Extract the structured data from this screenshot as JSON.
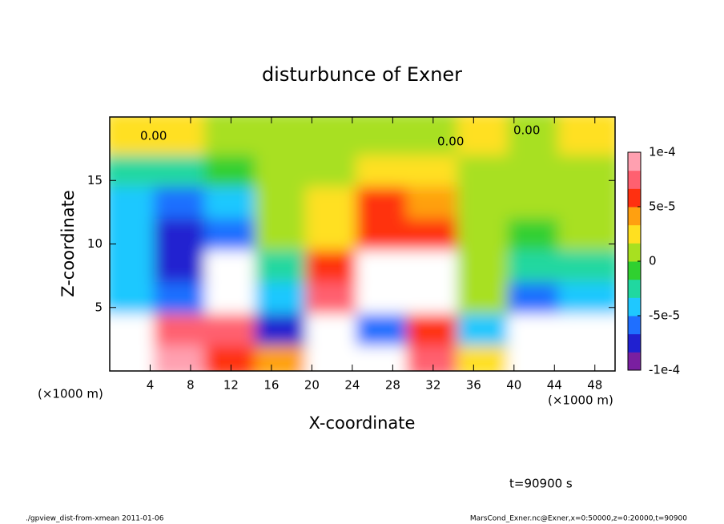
{
  "chart_data": {
    "type": "contourf",
    "title": "disturbunce of Exner",
    "x_label": "X-coordinate",
    "y_label": "Z-coordinate",
    "x_unit_label": "(×1000 m)",
    "x_unit_label_right": "(×1000 m)",
    "time_label": "t=90900 s",
    "footer_left": "./gpview_dist-from-xmean  2011-01-06",
    "footer_right": "MarsCond_Exner.nc@Exner,x=0:50000,z=0:20000,t=90900",
    "contour_labels": [
      "0.00",
      "0.00",
      "0.00"
    ],
    "xlim": [
      0,
      50
    ],
    "xticks": [
      4,
      8,
      12,
      16,
      20,
      24,
      28,
      32,
      36,
      40,
      44,
      48
    ],
    "ylim": [
      0,
      20
    ],
    "yticks": [
      5,
      10,
      15
    ],
    "clim": [
      -0.0001,
      0.0001
    ],
    "cticks": [
      {
        "value": 0.0001,
        "label": "1e-4"
      },
      {
        "value": 5e-05,
        "label": "5e-5"
      },
      0,
      {
        "value": -5e-05,
        "label": "-5e-5"
      },
      {
        "value": -0.0001,
        "label": "-1e-4"
      }
    ],
    "colormap": [
      "#7a1fa0",
      "#2020d0",
      "#1f6fff",
      "#1fc8ff",
      "#20d8a0",
      "#30d030",
      "#a8e020",
      "#ffe020",
      "#ffa010",
      "#ff3010",
      "#ff6070",
      "#ffa0b0"
    ],
    "x": [
      2.5,
      7.5,
      12.5,
      17.5,
      22.5,
      27.5,
      32.5,
      37.5,
      42.5,
      47.5
    ],
    "y": [
      1.25,
      3.75,
      6.25,
      8.75,
      11.25,
      13.75,
      16.25,
      18.75
    ],
    "z": [
      [
        0.00015,
        0.0001,
        6e-05,
        4e-05,
        0.00015,
        -0.00015,
        8e-05,
        3e-05,
        0.00015,
        0.00015
      ],
      [
        0.00015,
        8e-05,
        7e-05,
        -8e-05,
        0.00015,
        -6e-05,
        6e-05,
        -5e-05,
        0.00015,
        0.00015
      ],
      [
        -4e-05,
        -6e-05,
        -0.00015,
        -5e-05,
        8e-05,
        0.00015,
        0.00015,
        0,
        -6e-05,
        -4e-05
      ],
      [
        -5e-05,
        -8e-05,
        -0.00015,
        -2e-05,
        6e-05,
        0.00015,
        0.00015,
        0,
        -3e-05,
        -2e-05
      ],
      [
        -5e-05,
        -7e-05,
        -6e-05,
        0,
        3e-05,
        6e-05,
        6e-05,
        1e-05,
        -1e-05,
        0
      ],
      [
        -5e-05,
        -6e-05,
        -4e-05,
        1e-05,
        3e-05,
        5e-05,
        4e-05,
        1e-05,
        0,
        0
      ],
      [
        -3e-05,
        -2e-05,
        -1e-05,
        0,
        1e-05,
        3e-05,
        2e-05,
        0,
        1e-05,
        0
      ],
      [
        2e-05,
        3e-05,
        0,
        1e-05,
        1e-05,
        0,
        1e-05,
        2e-05,
        1e-05,
        3e-05
      ]
    ]
  }
}
